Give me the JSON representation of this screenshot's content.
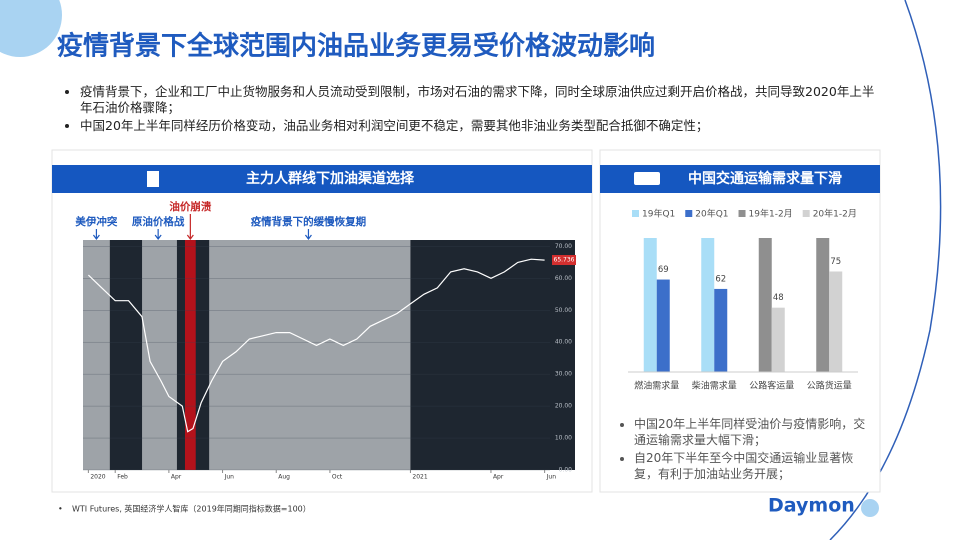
{
  "title": "疫情背景下全球范围内油品业务更易受价格波动影响",
  "bullets": [
    "疫情背景下，企业和工厂中止货物服务和人员流动受到限制，市场对石油的需求下降，同时全球原油供应过剩开启价格战，共同导致2020年上半年石油价格骤降；",
    "中国20年上半年同样经历价格变动，油品业务相对利润空间更不稳定，需要其他非油业务类型配合抵御不确定性；"
  ],
  "chart_data": [
    {
      "type": "line",
      "header": "主力人群线下加油渠道选择",
      "annotations": [
        {
          "text": "美伊冲突",
          "x": 0.3
        },
        {
          "text": "原油价格战",
          "x": 2.6
        },
        {
          "text": "油价崩溃",
          "x": 3.8
        },
        {
          "text": "疫情背景下的缓慢恢复期",
          "x": 8.2
        }
      ],
      "bands": [
        {
          "from": -0.2,
          "to": 0.8,
          "color": "#9ea3a8"
        },
        {
          "from": 2.0,
          "to": 3.3,
          "color": "#9ea3a8"
        },
        {
          "from": 3.6,
          "to": 4.0,
          "color": "#b3121b"
        },
        {
          "from": 4.5,
          "to": 12.0,
          "color": "#9ea3a8"
        }
      ],
      "x": [
        0,
        0.5,
        1,
        1.5,
        2,
        2.3,
        2.7,
        3,
        3.5,
        3.7,
        3.9,
        4.2,
        4.6,
        5,
        5.5,
        6,
        6.5,
        7,
        7.5,
        8,
        8.5,
        9,
        9.5,
        10,
        10.5,
        11,
        11.5,
        12,
        12.5,
        13,
        13.5,
        14,
        14.5,
        15,
        15.5,
        16,
        16.5,
        17
      ],
      "values": [
        61,
        57,
        53,
        53,
        48,
        34,
        28,
        23,
        20,
        12,
        13,
        21,
        28,
        34,
        37,
        41,
        42,
        43,
        43,
        41,
        39,
        41,
        39,
        41,
        45,
        47,
        49,
        52,
        55,
        57,
        62,
        63,
        62,
        60,
        62,
        65,
        66,
        65.7
      ],
      "color": "#ffffff",
      "last_price": 65.736,
      "xlim": [
        -0.2,
        17.2
      ],
      "xticks": [
        {
          "value": 0,
          "label": "2020"
        },
        {
          "value": 1,
          "label": "Feb"
        },
        {
          "value": 3,
          "label": "Apr"
        },
        {
          "value": 5,
          "label": "Jun"
        },
        {
          "value": 7,
          "label": "Aug"
        },
        {
          "value": 9,
          "label": "Oct"
        },
        {
          "value": 12,
          "label": "2021"
        },
        {
          "value": 15,
          "label": "Apr"
        },
        {
          "value": 17,
          "label": "Jun"
        }
      ],
      "ylim": [
        0,
        72
      ],
      "yticks": [
        {
          "value": 0,
          "label": "0.00"
        },
        {
          "value": 10,
          "label": "10.00"
        },
        {
          "value": 20,
          "label": "20.00"
        },
        {
          "value": 30,
          "label": "30.00"
        },
        {
          "value": 40,
          "label": "40.00"
        },
        {
          "value": 50,
          "label": "50.00"
        },
        {
          "value": 60,
          "label": "60.00"
        },
        {
          "value": 70,
          "label": "70.00"
        }
      ]
    },
    {
      "type": "bar",
      "header": "中国交通运输需求量下滑",
      "categories": [
        "燃油需求量",
        "柴油需求量",
        "公路客运量",
        "公路货运量"
      ],
      "series": [
        {
          "name": "19年Q1",
          "color": "#a9def7",
          "values": [
            100,
            100,
            null,
            null
          ],
          "data_labels": false
        },
        {
          "name": "20年Q1",
          "color": "#3c6fca",
          "values": [
            69,
            62,
            null,
            null
          ],
          "data_labels": true
        },
        {
          "name": "19年1-2月",
          "color": "#8f8f8f",
          "values": [
            null,
            null,
            100,
            100
          ],
          "data_labels": false
        },
        {
          "name": "20年1-2月",
          "color": "#d2d2d2",
          "values": [
            null,
            null,
            48,
            75
          ],
          "data_labels": true
        }
      ],
      "ylim": [
        0,
        100
      ],
      "notes": [
        "中国20年上半年同样受油价与疫情影响，交通运输需求量大幅下滑；",
        "自20年下半年至今中国交通运输业显著恢复，有利于加油站业务开展；"
      ]
    }
  ],
  "footnote": "WTI Futures, 英国经济学人智库（2019年同期同指标数据=100）",
  "logo": "Daymon"
}
